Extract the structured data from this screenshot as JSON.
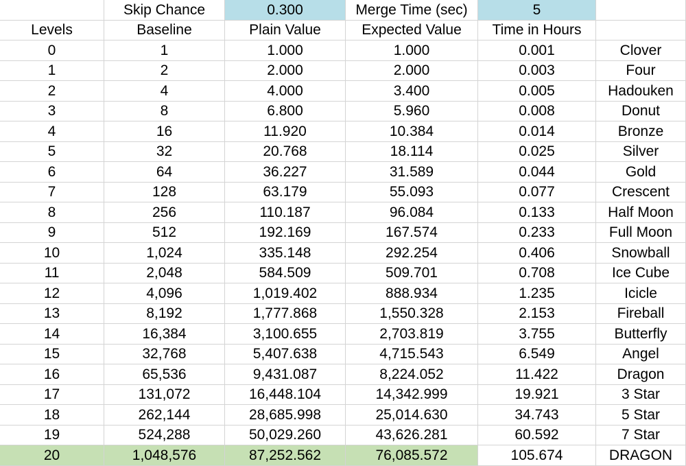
{
  "colors": {
    "input_cell_fill": "#b7dee8",
    "highlight_row_fill": "#c6e0b4",
    "gridline": "#d4d4d4"
  },
  "params": {
    "skip_chance_label": "Skip Chance",
    "skip_chance_value": "0.300",
    "merge_time_label": "Merge Time (sec)",
    "merge_time_value": "5"
  },
  "headers": [
    "Levels",
    "Baseline",
    "Plain Value",
    "Expected Value",
    "Time in Hours",
    ""
  ],
  "rows": [
    [
      "0",
      "1",
      "1.000",
      "1.000",
      "0.001",
      "Clover"
    ],
    [
      "1",
      "2",
      "2.000",
      "2.000",
      "0.003",
      "Four"
    ],
    [
      "2",
      "4",
      "4.000",
      "3.400",
      "0.005",
      "Hadouken"
    ],
    [
      "3",
      "8",
      "6.800",
      "5.960",
      "0.008",
      "Donut"
    ],
    [
      "4",
      "16",
      "11.920",
      "10.384",
      "0.014",
      "Bronze"
    ],
    [
      "5",
      "32",
      "20.768",
      "18.114",
      "0.025",
      "Silver"
    ],
    [
      "6",
      "64",
      "36.227",
      "31.589",
      "0.044",
      "Gold"
    ],
    [
      "7",
      "128",
      "63.179",
      "55.093",
      "0.077",
      "Crescent"
    ],
    [
      "8",
      "256",
      "110.187",
      "96.084",
      "0.133",
      "Half Moon"
    ],
    [
      "9",
      "512",
      "192.169",
      "167.574",
      "0.233",
      "Full Moon"
    ],
    [
      "10",
      "1,024",
      "335.148",
      "292.254",
      "0.406",
      "Snowball"
    ],
    [
      "11",
      "2,048",
      "584.509",
      "509.701",
      "0.708",
      "Ice Cube"
    ],
    [
      "12",
      "4,096",
      "1,019.402",
      "888.934",
      "1.235",
      "Icicle"
    ],
    [
      "13",
      "8,192",
      "1,777.868",
      "1,550.328",
      "2.153",
      "Fireball"
    ],
    [
      "14",
      "16,384",
      "3,100.655",
      "2,703.819",
      "3.755",
      "Butterfly"
    ],
    [
      "15",
      "32,768",
      "5,407.638",
      "4,715.543",
      "6.549",
      "Angel"
    ],
    [
      "16",
      "65,536",
      "9,431.087",
      "8,224.052",
      "11.422",
      "Dragon"
    ],
    [
      "17",
      "131,072",
      "16,448.104",
      "14,342.999",
      "19.921",
      "3 Star"
    ],
    [
      "18",
      "262,144",
      "28,685.998",
      "25,014.630",
      "34.743",
      "5 Star"
    ],
    [
      "19",
      "524,288",
      "50,029.260",
      "43,626.281",
      "60.592",
      "7 Star"
    ],
    [
      "20",
      "1,048,576",
      "87,252.562",
      "76,085.572",
      "105.674",
      "DRAGON"
    ]
  ]
}
